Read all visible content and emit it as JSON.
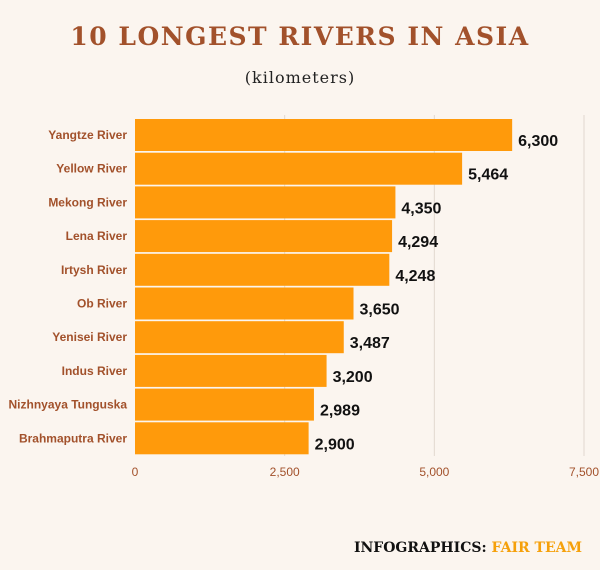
{
  "title": "10 LONGEST RIVERS IN ASIA",
  "subtitle": "(kilometers)",
  "footer": {
    "prefix": "INFOGRAPHICS:",
    "brand": "FAIR TEAM"
  },
  "colors": {
    "bar": "#ff9a0b",
    "label": "#a2512b",
    "grid": "#e2d8cf",
    "value": "#111111",
    "tick": "#a2512b"
  },
  "chart_data": {
    "type": "bar",
    "orientation": "horizontal",
    "title": "10 LONGEST RIVERS IN ASIA",
    "subtitle": "(kilometers)",
    "categories": [
      "Yangtze River",
      "Yellow River",
      "Mekong River",
      "Lena River",
      "Irtysh River",
      "Ob River",
      "Yenisei River",
      "Indus River",
      "Nizhnyaya Tunguska",
      "Brahmaputra River"
    ],
    "values": [
      6300,
      5464,
      4350,
      4294,
      4248,
      3650,
      3487,
      3200,
      2989,
      2900
    ],
    "value_labels": [
      "6,300",
      "5,464",
      "4,350",
      "4,294",
      "4,248",
      "3,650",
      "3,487",
      "3,200",
      "2,989",
      "2,900"
    ],
    "xlim": [
      0,
      7500
    ],
    "xticks": [
      0,
      2500,
      5000,
      7500
    ],
    "xtick_labels": [
      "0",
      "2,500",
      "5,000",
      "7,500"
    ],
    "grid": true
  }
}
